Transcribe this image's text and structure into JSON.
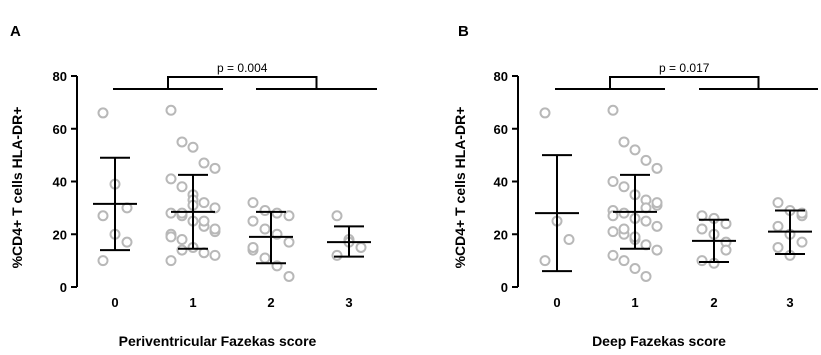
{
  "chart_data": [
    {
      "type": "scatter",
      "panel_label": "A",
      "xlabel": "Periventricular Fazekas score",
      "ylabel": "%CD4+ T cells HLA-DR+",
      "categories": [
        "0",
        "1",
        "2",
        "3"
      ],
      "ylim": [
        0,
        80
      ],
      "yticks": [
        "0",
        "20",
        "40",
        "60",
        "80"
      ],
      "grid": false,
      "points": [
        [
          66,
          39,
          30,
          27,
          20,
          17,
          10
        ],
        [
          67,
          55,
          53,
          47,
          45,
          41,
          38,
          35,
          32,
          30,
          28,
          27,
          25,
          23,
          21,
          20,
          18,
          15,
          13,
          12,
          10,
          28,
          33,
          25,
          22,
          19,
          14,
          31
        ],
        [
          32,
          29,
          28,
          27,
          25,
          22,
          20,
          17,
          14,
          11,
          8,
          4,
          15
        ],
        [
          27,
          18,
          15,
          12,
          17
        ]
      ],
      "means": [
        31.5,
        28.5,
        19,
        17
      ],
      "sd": [
        [
          14,
          49
        ],
        [
          14.5,
          42.5
        ],
        [
          9,
          28.5
        ],
        [
          11.5,
          23
        ]
      ],
      "comparison": {
        "text": "p = 0.004",
        "left_groups": [
          "0",
          "1"
        ],
        "right_groups": [
          "2",
          "3"
        ]
      }
    },
    {
      "type": "scatter",
      "panel_label": "B",
      "xlabel": "Deep Fazekas score",
      "ylabel": "%CD4+ T cells HLA-DR+",
      "categories": [
        "0",
        "1",
        "2",
        "3"
      ],
      "ylim": [
        0,
        80
      ],
      "yticks": [
        "0",
        "20",
        "40",
        "60",
        "80"
      ],
      "grid": false,
      "points": [
        [
          66,
          25,
          18,
          10
        ],
        [
          67,
          55,
          52,
          48,
          45,
          40,
          38,
          35,
          33,
          31,
          29,
          28,
          26,
          25,
          23,
          21,
          20,
          18,
          16,
          14,
          12,
          10,
          7,
          4,
          32,
          27,
          22,
          19,
          30
        ],
        [
          27,
          26,
          24,
          22,
          20,
          17,
          10,
          9,
          14
        ],
        [
          32,
          29,
          27,
          23,
          20,
          17,
          15,
          12,
          28
        ]
      ],
      "means": [
        28,
        28.5,
        17.5,
        21
      ],
      "sd": [
        [
          6,
          50
        ],
        [
          14.5,
          42.5
        ],
        [
          9.5,
          25.5
        ],
        [
          12.5,
          29
        ]
      ],
      "comparison": {
        "text": "p = 0.017",
        "left_groups": [
          "0",
          "1"
        ],
        "right_groups": [
          "2",
          "3"
        ]
      }
    }
  ]
}
